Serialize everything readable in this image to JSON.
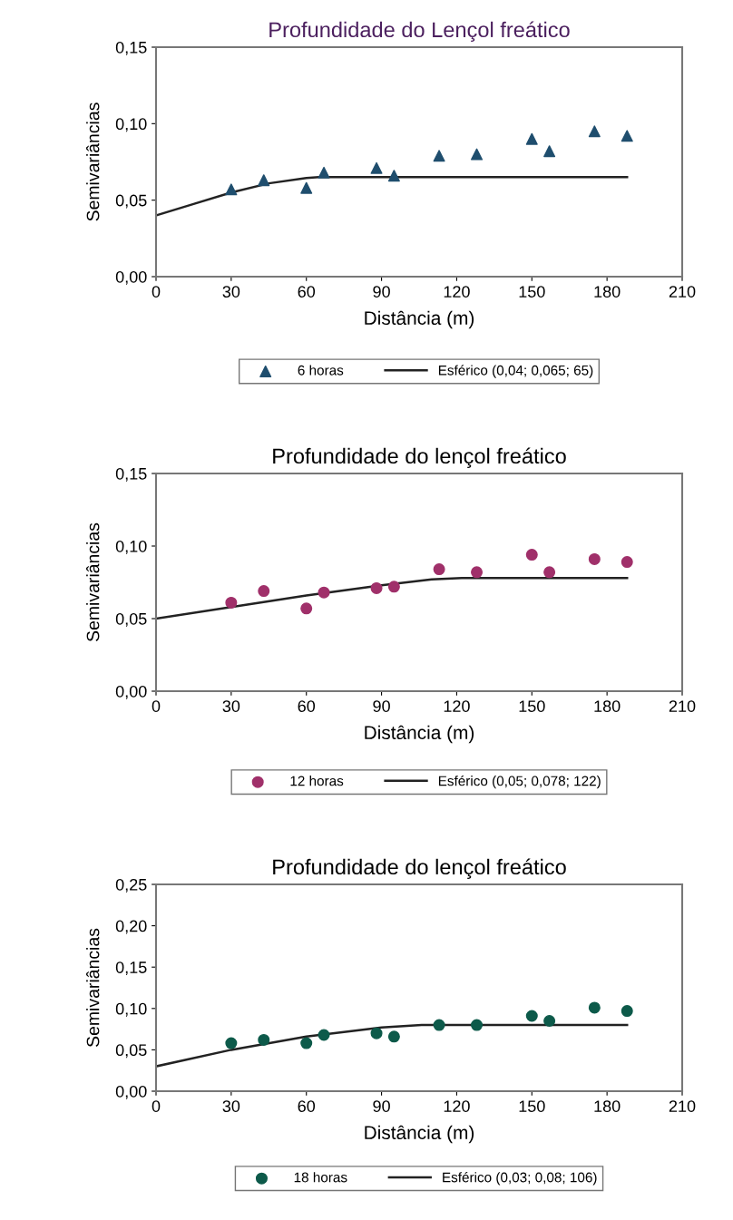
{
  "chart_data": [
    {
      "type": "scatter",
      "title": "Profundidade do Lençol freático",
      "xlabel": "Distância (m)",
      "ylabel": "Semivariâncias",
      "xlim": [
        0,
        210
      ],
      "ylim": [
        0,
        0.15
      ],
      "xticks": [
        0,
        30,
        60,
        90,
        120,
        150,
        180,
        210
      ],
      "yticks": [
        {
          "value": 0,
          "label": "0,00"
        },
        {
          "value": 0.05,
          "label": "0,05"
        },
        {
          "value": 0.1,
          "label": "0,10"
        },
        {
          "value": 0.15,
          "label": "0,15"
        }
      ],
      "grid": false,
      "legend": "bottom",
      "series": [
        {
          "name": "6 horas",
          "marker": "triangle",
          "color": "#1f4e6e",
          "x": [
            30,
            43,
            60,
            67,
            88,
            95,
            113,
            128,
            150,
            157,
            175,
            188
          ],
          "values": [
            0.057,
            0.063,
            0.058,
            0.068,
            0.071,
            0.066,
            0.079,
            0.08,
            0.09,
            0.082,
            0.095,
            0.092
          ]
        },
        {
          "name": "Esférico (0,04; 0,065; 65)",
          "type": "line",
          "color": "#222222",
          "x": [
            0,
            15,
            30,
            45,
            60,
            65,
            188
          ],
          "values": [
            0.04,
            0.0475,
            0.055,
            0.061,
            0.0645,
            0.065,
            0.065
          ]
        }
      ]
    },
    {
      "type": "scatter",
      "title": "Profundidade do lençol freático",
      "xlabel": "Distância (m)",
      "ylabel": "Semivariâncias",
      "xlim": [
        0,
        210
      ],
      "ylim": [
        0,
        0.15
      ],
      "xticks": [
        0,
        30,
        60,
        90,
        120,
        150,
        180,
        210
      ],
      "yticks": [
        {
          "value": 0,
          "label": "0,00"
        },
        {
          "value": 0.05,
          "label": "0,05"
        },
        {
          "value": 0.1,
          "label": "0,10"
        },
        {
          "value": 0.15,
          "label": "0,15"
        }
      ],
      "grid": false,
      "legend": "bottom",
      "series": [
        {
          "name": "12 horas",
          "marker": "circle",
          "color": "#a0306a",
          "x": [
            30,
            43,
            60,
            67,
            88,
            95,
            113,
            128,
            150,
            157,
            175,
            188
          ],
          "values": [
            0.061,
            0.069,
            0.057,
            0.068,
            0.071,
            0.072,
            0.084,
            0.082,
            0.094,
            0.082,
            0.091,
            0.089
          ]
        },
        {
          "name": "Esférico (0,05; 0,078; 122)",
          "type": "line",
          "color": "#222222",
          "x": [
            0,
            30,
            60,
            90,
            110,
            122,
            188
          ],
          "values": [
            0.05,
            0.058,
            0.066,
            0.073,
            0.077,
            0.078,
            0.078
          ]
        }
      ]
    },
    {
      "type": "scatter",
      "title": "Profundidade do lençol freático",
      "xlabel": "Distância (m)",
      "ylabel": "Semivariâncias",
      "xlim": [
        0,
        210
      ],
      "ylim": [
        0,
        0.25
      ],
      "xticks": [
        0,
        30,
        60,
        90,
        120,
        150,
        180,
        210
      ],
      "yticks": [
        {
          "value": 0,
          "label": "0,00"
        },
        {
          "value": 0.05,
          "label": "0,05"
        },
        {
          "value": 0.1,
          "label": "0,10"
        },
        {
          "value": 0.15,
          "label": "0,15"
        },
        {
          "value": 0.2,
          "label": "0,20"
        },
        {
          "value": 0.25,
          "label": "0,25"
        }
      ],
      "grid": false,
      "legend": "bottom",
      "series": [
        {
          "name": "18 horas",
          "marker": "circle",
          "color": "#0d5a4a",
          "x": [
            30,
            43,
            60,
            67,
            88,
            95,
            113,
            128,
            150,
            157,
            175,
            188
          ],
          "values": [
            0.058,
            0.062,
            0.058,
            0.068,
            0.07,
            0.066,
            0.08,
            0.08,
            0.091,
            0.085,
            0.101,
            0.097
          ]
        },
        {
          "name": "Esférico (0,03; 0,08; 106)",
          "type": "line",
          "color": "#222222",
          "x": [
            0,
            30,
            60,
            90,
            106,
            188
          ],
          "values": [
            0.03,
            0.05,
            0.066,
            0.077,
            0.08,
            0.08
          ]
        }
      ]
    }
  ]
}
